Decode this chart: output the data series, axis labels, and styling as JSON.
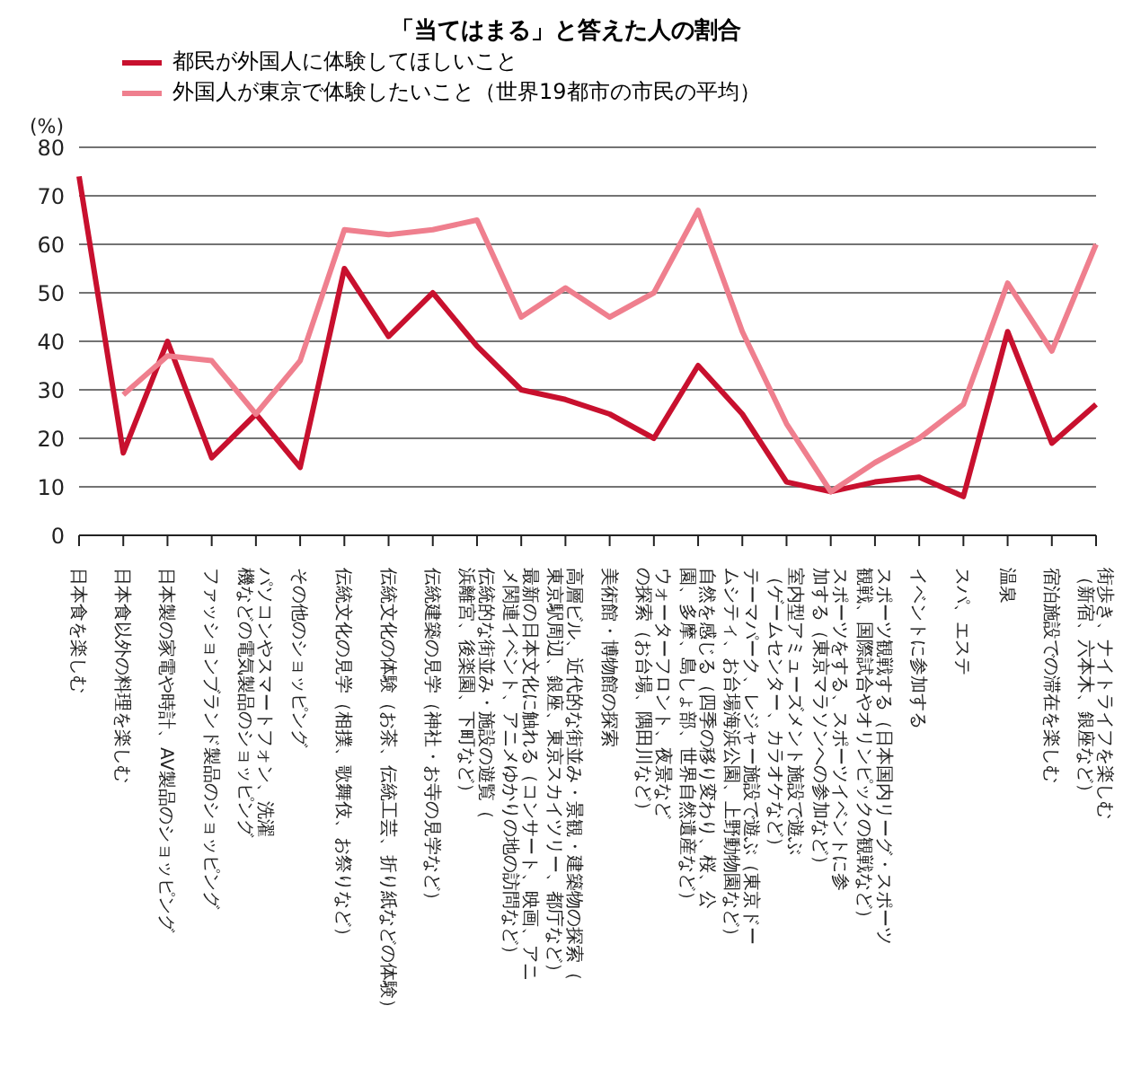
{
  "chart_data": {
    "type": "line",
    "title": "「当てはまる」と答えた人の割合",
    "ylabel": "(%)",
    "categories": [
      "日本食を楽しむ",
      "日本食以外の料理を楽しむ",
      "日本製の家電や時計、AV製品のショッピング",
      "ファッションブランド製品のショッピング",
      "パソコンやスマートフォン、洗濯機などの電気製品のショッピング",
      "その他のショッピング",
      "伝統文化の見学（相撲、歌舞伎、お祭りなど）",
      "伝統文化の体験（お茶、伝統工芸、折り紙などの体験）",
      "伝統建築の見学（神社・お寺の見学など）",
      "伝統的な街並み・施設の遊覧（浜離宮、後楽園、下町など）",
      "最新の日本文化に触れる（コンサート、映画、アニメ関連イベント、アニメゆかりの地の訪問など）",
      "高層ビル、近代的な街並み・景観・建築物の探索（東京駅周辺、銀座、東京スカイツリー、都庁など）",
      "美術館・博物館の探索",
      "ウォーターフロント、夜景などの探索（お台場、隅田川など）",
      "自然を感じる（四季の移り変わり、桜、公園、多摩、島しょ部、世界自然遺産など）",
      "テーマパーク、レジャー施設で遊ぶ（東京ドームシティ、お台場海浜公園、上野動物園など）",
      "室内型アミューズメント施設で遊ぶ（ゲームセンター、カラオケなど）",
      "スポーツをする、スポーツイベントに参加する（東京マラソンへの参加など）",
      "スポーツ観戦する（日本国内リーグ・スポーツ観戦、国際試合やオリンピックの観戦など）",
      "イベントに参加する",
      "スパ、エステ",
      "温泉",
      "宿泊施設での滞在を楽しむ",
      "街歩き、ナイトライフを楽しむ（新宿、六本木、銀座など）"
    ],
    "series": [
      {
        "name": "都民が外国人に体験してほしいこと",
        "color": "#c8102e",
        "values": [
          74,
          17,
          40,
          16,
          25,
          14,
          55,
          41,
          50,
          39,
          30,
          28,
          25,
          20,
          35,
          25,
          11,
          9,
          11,
          12,
          8,
          42,
          19,
          27
        ]
      },
      {
        "name": "外国人が東京で体験したいこと（世界19都市の市民の平均）",
        "color": "#ef7f8e",
        "values": [
          null,
          29,
          37,
          36,
          25,
          36,
          63,
          62,
          63,
          65,
          45,
          51,
          45,
          50,
          67,
          42,
          23,
          9,
          15,
          20,
          27,
          52,
          38,
          60
        ]
      }
    ],
    "ylim": [
      0,
      80
    ],
    "yticks": [
      0,
      10,
      20,
      30,
      40,
      50,
      60,
      70,
      80
    ],
    "grid": "y",
    "legend": "top left",
    "marker": "none",
    "line_style": "solid"
  }
}
